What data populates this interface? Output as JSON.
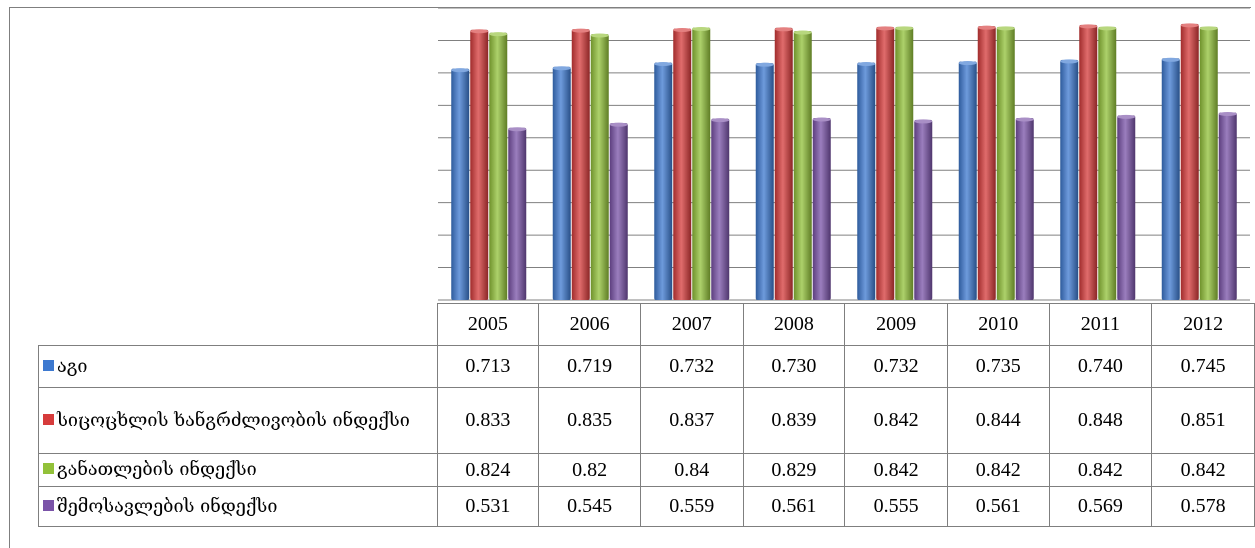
{
  "chart_data": {
    "type": "bar",
    "categories": [
      "2005",
      "2006",
      "2007",
      "2008",
      "2009",
      "2010",
      "2011",
      "2012"
    ],
    "series": [
      {
        "name": "აგი",
        "color": "#3d79d0",
        "values": [
          0.713,
          0.719,
          0.732,
          0.73,
          0.732,
          0.735,
          0.74,
          0.745
        ]
      },
      {
        "name": "სიცოცხლის ხანგრძლივობის ინდექსი",
        "color": "#d63b3b",
        "values": [
          0.833,
          0.835,
          0.837,
          0.839,
          0.842,
          0.844,
          0.848,
          0.851
        ]
      },
      {
        "name": "განათლების ინდექსი",
        "color": "#92c139",
        "values": [
          0.824,
          0.82,
          0.84,
          0.829,
          0.842,
          0.842,
          0.842,
          0.842
        ]
      },
      {
        "name": "შემოსავლების ინდექსი",
        "color": "#7a53a8",
        "values": [
          0.531,
          0.545,
          0.559,
          0.561,
          0.555,
          0.561,
          0.569,
          0.578
        ]
      }
    ],
    "table_values": [
      [
        "0.713",
        "0.719",
        "0.732",
        "0.730",
        "0.732",
        "0.735",
        "0.740",
        "0.745"
      ],
      [
        "0.833",
        "0.835",
        "0.837",
        "0.839",
        "0.842",
        "0.844",
        "0.848",
        "0.851"
      ],
      [
        "0.824",
        "0.82",
        "0.84",
        "0.829",
        "0.842",
        "0.842",
        "0.842",
        "0.842"
      ],
      [
        "0.531",
        "0.545",
        "0.559",
        "0.561",
        "0.555",
        "0.561",
        "0.569",
        "0.578"
      ]
    ],
    "ylim": [
      0,
      0.9
    ],
    "grid": true,
    "legend": "data-table",
    "title": "",
    "xlabel": "",
    "ylabel": ""
  }
}
